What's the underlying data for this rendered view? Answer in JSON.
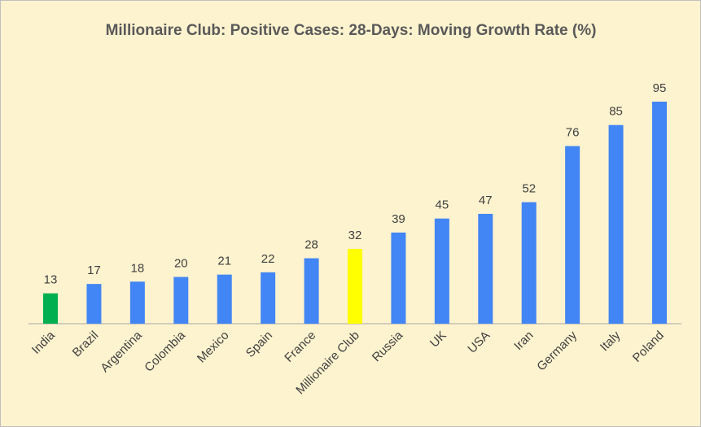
{
  "chart_data": {
    "type": "bar",
    "title": "Millionaire Club: Positive Cases: 28-Days: Moving Growth Rate (%)",
    "categories": [
      "India",
      "Brazil",
      "Argentina",
      "Colombia",
      "Mexico",
      "Spain",
      "France",
      "Millionaire Club",
      "Russia",
      "UK",
      "USA",
      "Iran",
      "Germany",
      "Italy",
      "Poland"
    ],
    "values": [
      13,
      17,
      18,
      20,
      21,
      22,
      28,
      32,
      39,
      45,
      47,
      52,
      76,
      85,
      95
    ],
    "colors": [
      "#00b050",
      "#4285f4",
      "#4285f4",
      "#4285f4",
      "#4285f4",
      "#4285f4",
      "#4285f4",
      "#ffff00",
      "#4285f4",
      "#4285f4",
      "#4285f4",
      "#4285f4",
      "#4285f4",
      "#4285f4",
      "#4285f4"
    ]
  }
}
